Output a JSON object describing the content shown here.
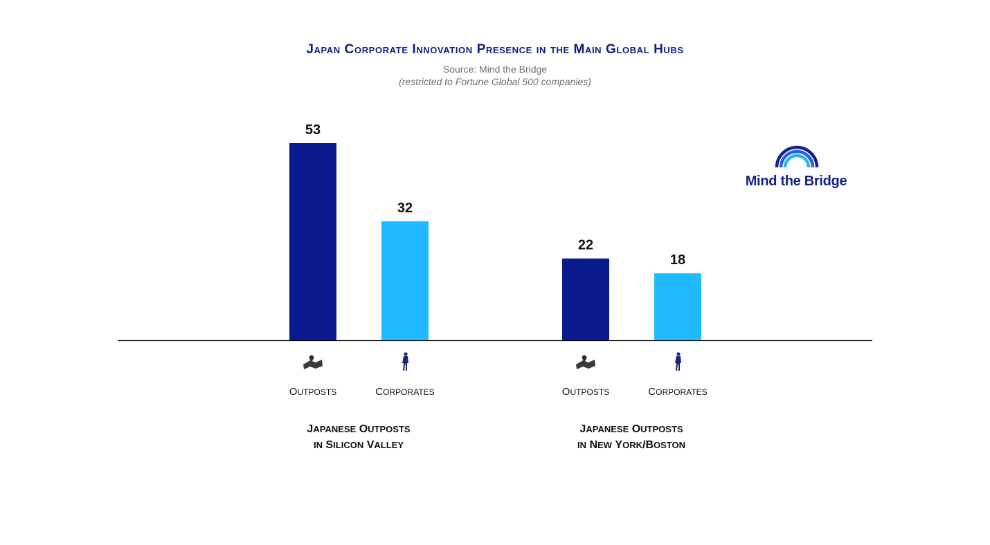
{
  "header": {
    "title": "Japan Corporate Innovation Presence in the Main Global Hubs",
    "source": "Source: Mind the Bridge",
    "note": "(restricted to Fortune Global 500 companies)"
  },
  "logo": {
    "text": "Mind the Bridge",
    "icon": "bridge-arc-icon"
  },
  "chart_data": {
    "type": "bar",
    "categories": [
      "Outposts",
      "Corporates"
    ],
    "groups": [
      {
        "label_line1": "Japanese Outposts",
        "label_line2": "in Silicon Valley",
        "values": [
          53,
          32
        ]
      },
      {
        "label_line1": "Japanese Outposts",
        "label_line2": "in New York/Boston",
        "values": [
          22,
          18
        ]
      }
    ],
    "category_icons": [
      "map-pin-icon",
      "businesswoman-icon"
    ],
    "colors": {
      "Outposts": "#0a1a8c",
      "Corporates": "#1fbaff"
    },
    "ylim": [
      0,
      60
    ],
    "grid": false,
    "legend": "none"
  }
}
